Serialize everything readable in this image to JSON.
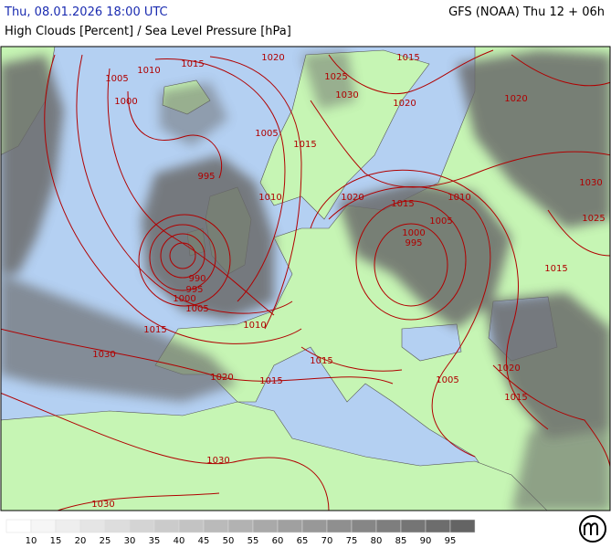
{
  "header": {
    "valid_time": "Thu, 08.01.2026 18:00 UTC",
    "model_run": "GFS (NOAA) Thu 12 + 06h",
    "parameter": "High Clouds [Percent] / Sea Level Pressure [hPa]"
  },
  "isobar_labels": [
    1010,
    1015,
    1020,
    1005,
    1000,
    1005,
    995,
    1010,
    1025,
    1030,
    1015,
    1020,
    1020,
    1015,
    1020,
    1015,
    1010,
    1005,
    1000,
    995,
    1030,
    1025,
    1015,
    990,
    995,
    1000,
    1005,
    1010,
    1015,
    1030,
    1015,
    1020,
    1015,
    1005,
    1020,
    1015,
    1030,
    1030
  ],
  "legend": {
    "ticks": [
      10,
      15,
      20,
      25,
      30,
      35,
      40,
      45,
      50,
      55,
      60,
      65,
      70,
      75,
      80,
      85,
      90,
      95
    ]
  }
}
